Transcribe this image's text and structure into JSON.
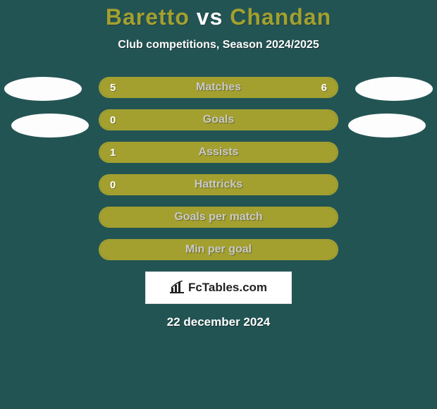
{
  "background_color": "#235454",
  "title": {
    "player1": "Baretto",
    "vs": "vs",
    "player2": "Chandan",
    "player1_color": "#a3a030",
    "vs_color": "#ffffff",
    "player2_color": "#a3a030"
  },
  "subtitle": "Club competitions, Season 2024/2025",
  "bars": {
    "border_color": "#a3a030",
    "track_color": "#235454",
    "fill_left_color": "#a3a030",
    "fill_right_color": "#a3a030",
    "border_width": 2,
    "height": 30,
    "gap": 16,
    "label_color": "#c9c9c9",
    "value_color": "#ffffff",
    "items": [
      {
        "label": "Matches",
        "left_val": "5",
        "right_val": "6",
        "left_pct": 45,
        "right_pct": 55
      },
      {
        "label": "Goals",
        "left_val": "0",
        "right_val": "",
        "left_pct": 0,
        "right_pct": 100
      },
      {
        "label": "Assists",
        "left_val": "1",
        "right_val": "",
        "left_pct": 100,
        "right_pct": 0
      },
      {
        "label": "Hattricks",
        "left_val": "0",
        "right_val": "",
        "left_pct": 0,
        "right_pct": 100
      },
      {
        "label": "Goals per match",
        "left_val": "",
        "right_val": "",
        "left_pct": 0,
        "right_pct": 100
      },
      {
        "label": "Min per goal",
        "left_val": "",
        "right_val": "",
        "left_pct": 0,
        "right_pct": 100
      }
    ]
  },
  "avatar_color": "#fdfdfd",
  "logo": {
    "text": "FcTables.com",
    "bg": "#ffffff",
    "text_color": "#222222"
  },
  "date": "22 december 2024"
}
